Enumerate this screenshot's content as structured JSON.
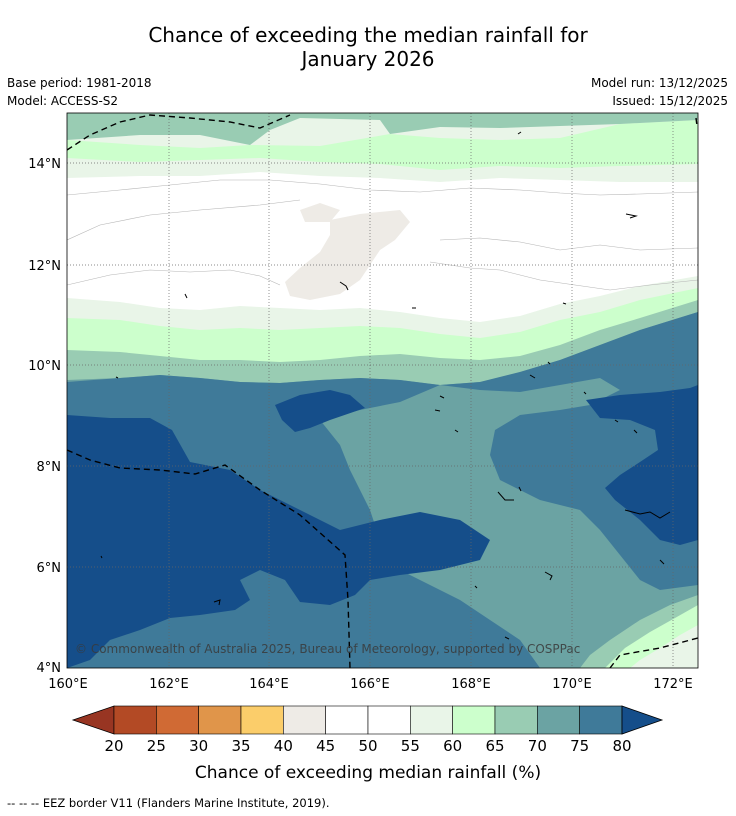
{
  "title": {
    "line1": "Chance of exceeding the median rainfall for",
    "line2": "January 2026"
  },
  "info": {
    "base_period": "Base period: 1981-2018",
    "model": "Model: ACCESS-S2",
    "model_run": "Model run: 13/12/2025",
    "issued": "Issued: 15/12/2025"
  },
  "map": {
    "lat_labels": [
      "14°N",
      "12°N",
      "10°N",
      "8°N",
      "6°N",
      "4°N"
    ],
    "lon_labels": [
      "160°E",
      "162°E",
      "164°E",
      "166°E",
      "168°E",
      "170°E",
      "172°E"
    ],
    "credit": "© Commonwealth of Australia 2025, Bureau of Meteorology, supported by COSPPac"
  },
  "colorbar": {
    "ticks": [
      "20",
      "25",
      "30",
      "35",
      "40",
      "45",
      "50",
      "55",
      "60",
      "65",
      "70",
      "75",
      "80"
    ],
    "colors": [
      "#b34a25",
      "#d06a34",
      "#e0954a",
      "#fbcd6a",
      "#eeebe6",
      "#ffffff",
      "#ffffff",
      "#e9f5e8",
      "#ccffcc",
      "#99ccb3",
      "#6ba3a3",
      "#3f7a99",
      "#154e8a"
    ],
    "low_color": "#983522",
    "high_color": "#154e8a",
    "label": "Chance of exceeding median rainfall (%)"
  },
  "footer": "-- -- -- EEZ border V11 (Flanders Marine Institute, 2019)."
}
